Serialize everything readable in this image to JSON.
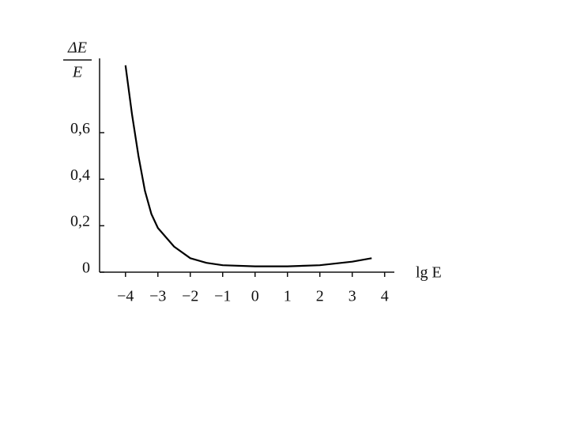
{
  "chart_data": {
    "type": "line",
    "ylabel": {
      "numerator": "ΔE",
      "denominator": "E"
    },
    "xlabel": "lg E",
    "x": [
      -4,
      -3.8,
      -3.6,
      -3.4,
      -3.2,
      -3,
      -2.5,
      -2,
      -1.5,
      -1,
      0,
      1,
      2,
      3,
      3.6
    ],
    "values": [
      0.89,
      0.68,
      0.5,
      0.35,
      0.25,
      0.19,
      0.11,
      0.06,
      0.04,
      0.03,
      0.025,
      0.025,
      0.03,
      0.045,
      0.06
    ],
    "color": "#000000",
    "xlim": [
      -4.8,
      4.3
    ],
    "ylim": [
      0,
      0.92
    ],
    "xticks": [
      {
        "value": -4,
        "label": "−4"
      },
      {
        "value": -3,
        "label": "−3"
      },
      {
        "value": -2,
        "label": "−2"
      },
      {
        "value": -1,
        "label": "−1"
      },
      0,
      1,
      2,
      3,
      4
    ],
    "yticks": [
      0,
      {
        "value": 0.2,
        "label": "0,2"
      },
      {
        "value": 0.4,
        "label": "0,4"
      },
      {
        "value": 0.6,
        "label": "0,6"
      }
    ],
    "grid": false
  }
}
